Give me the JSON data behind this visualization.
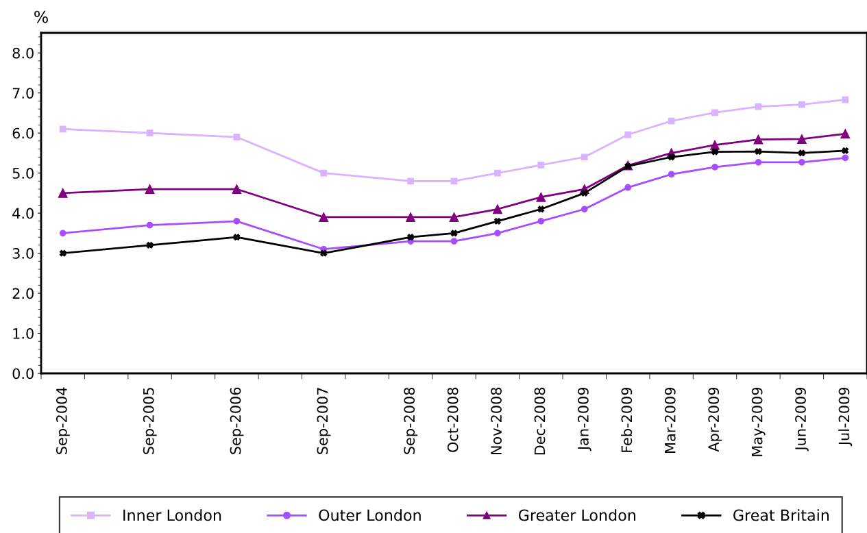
{
  "chart_data": {
    "type": "line",
    "ylabel": "%",
    "categories": [
      "Sep-2004",
      null,
      "Sep-2005",
      null,
      "Sep-2006",
      null,
      "Sep-2007",
      null,
      "Sep-2008",
      "Oct-2008",
      "Nov-2008",
      "Dec-2008",
      "Jan-2009",
      "Feb-2009",
      "Mar-2009",
      "Apr-2009",
      "May-2009",
      "Jun-2009",
      "Jul-2009"
    ],
    "series": [
      {
        "name": "Inner London",
        "color": "#d9b3ff",
        "marker": "square",
        "values": [
          6.1,
          null,
          6.0,
          null,
          5.9,
          null,
          5.0,
          null,
          4.8,
          4.8,
          5.0,
          5.2,
          5.4,
          5.96,
          6.3,
          6.51,
          6.66,
          6.71,
          6.83
        ]
      },
      {
        "name": "Outer London",
        "color": "#a64dff",
        "marker": "circle",
        "values": [
          3.5,
          null,
          3.7,
          null,
          3.8,
          null,
          3.1,
          null,
          3.3,
          3.3,
          3.5,
          3.8,
          4.1,
          4.64,
          4.97,
          5.15,
          5.27,
          5.27,
          5.38
        ]
      },
      {
        "name": "Greater London",
        "color": "#800080",
        "marker": "triangle",
        "values": [
          4.5,
          null,
          4.6,
          null,
          4.6,
          null,
          3.9,
          null,
          3.9,
          3.9,
          4.1,
          4.4,
          4.6,
          5.19,
          5.5,
          5.7,
          5.84,
          5.85,
          5.98
        ]
      },
      {
        "name": "Great Britain",
        "color": "#000000",
        "marker": "cross",
        "values": [
          3.0,
          null,
          3.2,
          null,
          3.4,
          null,
          3.0,
          null,
          3.4,
          3.5,
          3.8,
          4.1,
          4.5,
          5.17,
          5.4,
          5.53,
          5.54,
          5.5,
          5.56
        ]
      }
    ],
    "ylim": [
      0,
      8.5
    ],
    "yticks": [
      {
        "value": 0,
        "label": "0.0"
      },
      {
        "value": 1,
        "label": "1.0"
      },
      {
        "value": 2,
        "label": "2.0"
      },
      {
        "value": 3,
        "label": "3.0"
      },
      {
        "value": 4,
        "label": "4.0"
      },
      {
        "value": 5,
        "label": "5.0"
      },
      {
        "value": 6,
        "label": "6.0"
      },
      {
        "value": 7,
        "label": "7.0"
      },
      {
        "value": 8,
        "label": "8.0"
      }
    ],
    "grid": false,
    "legend": "bottom",
    "line_style": "solid"
  }
}
